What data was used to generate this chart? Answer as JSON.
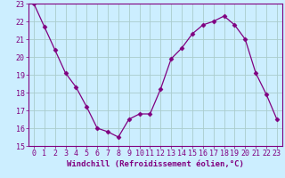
{
  "x": [
    0,
    1,
    2,
    3,
    4,
    5,
    6,
    7,
    8,
    9,
    10,
    11,
    12,
    13,
    14,
    15,
    16,
    17,
    18,
    19,
    20,
    21,
    22,
    23
  ],
  "y": [
    23.0,
    21.7,
    20.4,
    19.1,
    18.3,
    17.2,
    16.0,
    15.8,
    15.5,
    16.5,
    16.8,
    16.8,
    18.2,
    19.9,
    20.5,
    21.3,
    21.8,
    22.0,
    22.3,
    21.8,
    21.0,
    19.1,
    17.9,
    16.5
  ],
  "line_color": "#800080",
  "marker": "D",
  "marker_size": 2.5,
  "bg_color": "#cceeff",
  "grid_color": "#aacccc",
  "axis_color": "#800080",
  "xlabel": "Windchill (Refroidissement éolien,°C)",
  "xlabel_fontsize": 6.5,
  "tick_fontsize": 6.0,
  "ylim": [
    15,
    23
  ],
  "xlim": [
    -0.5,
    23.5
  ],
  "yticks": [
    15,
    16,
    17,
    18,
    19,
    20,
    21,
    22,
    23
  ],
  "xticks": [
    0,
    1,
    2,
    3,
    4,
    5,
    6,
    7,
    8,
    9,
    10,
    11,
    12,
    13,
    14,
    15,
    16,
    17,
    18,
    19,
    20,
    21,
    22,
    23
  ]
}
